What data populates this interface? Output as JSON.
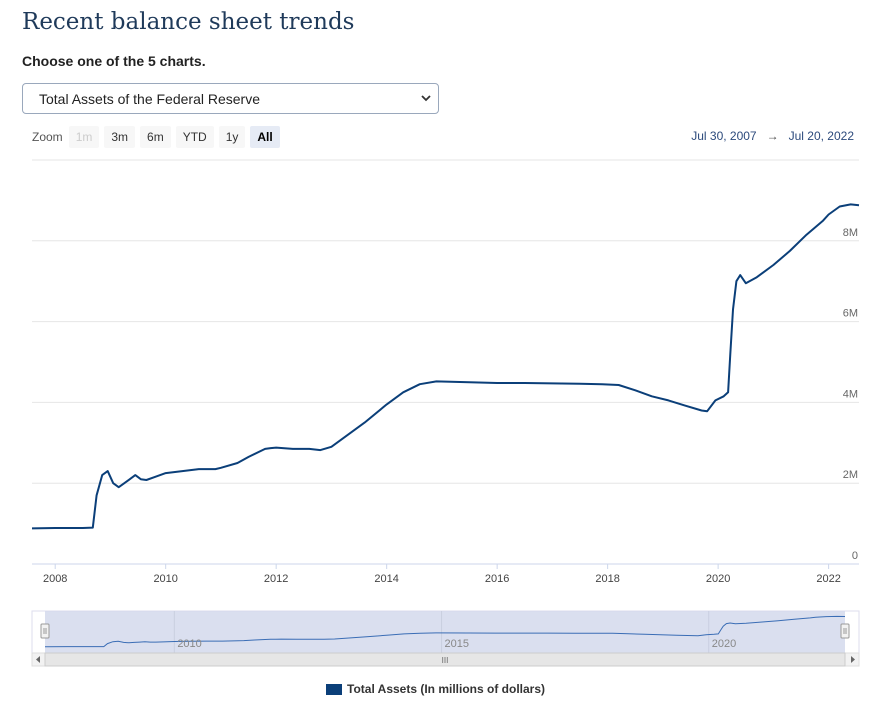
{
  "page": {
    "title": "Recent balance sheet trends",
    "subtitle": "Choose one of the 5 charts.",
    "select_value": "Total Assets of the Federal Reserve"
  },
  "zoom": {
    "label": "Zoom",
    "buttons": [
      {
        "label": "1m",
        "state": "disabled"
      },
      {
        "label": "3m",
        "state": "normal"
      },
      {
        "label": "6m",
        "state": "normal"
      },
      {
        "label": "YTD",
        "state": "normal"
      },
      {
        "label": "1y",
        "state": "normal"
      },
      {
        "label": "All",
        "state": "active"
      }
    ]
  },
  "range": {
    "from": "Jul 30, 2007",
    "arrow": "→",
    "to": "Jul 20, 2022"
  },
  "navigator": {
    "labels": [
      "2010",
      "2015",
      "2020"
    ],
    "scroll_grip": "III"
  },
  "colors": {
    "series": "#0b3f79",
    "grid": "#e6e6e6",
    "navigator_fill": "#d3d9ec"
  },
  "chart_data": {
    "type": "line",
    "title": "",
    "xlabel": "",
    "ylabel": "",
    "x_ticks": [
      "2008",
      "2010",
      "2012",
      "2014",
      "2016",
      "2018",
      "2020",
      "2022"
    ],
    "y_ticks": [
      "0",
      "2M",
      "4M",
      "6M",
      "8M"
    ],
    "xlim": [
      2007.58,
      2022.55
    ],
    "ylim": [
      0,
      10000000
    ],
    "legend": "Total Assets (In millions of dollars)",
    "series": [
      {
        "name": "Total Assets (In millions of dollars)",
        "x": [
          2007.58,
          2008.0,
          2008.5,
          2008.68,
          2008.75,
          2008.85,
          2008.95,
          2009.05,
          2009.15,
          2009.25,
          2009.35,
          2009.45,
          2009.55,
          2009.65,
          2009.8,
          2010.0,
          2010.3,
          2010.6,
          2010.9,
          2011.0,
          2011.3,
          2011.5,
          2011.8,
          2011.9,
          2012.0,
          2012.3,
          2012.6,
          2012.8,
          2013.0,
          2013.3,
          2013.6,
          2014.0,
          2014.3,
          2014.6,
          2014.9,
          2015.5,
          2016.0,
          2016.5,
          2017.0,
          2017.5,
          2017.9,
          2018.2,
          2018.5,
          2018.8,
          2019.1,
          2019.4,
          2019.7,
          2019.8,
          2019.95,
          2020.1,
          2020.18,
          2020.22,
          2020.27,
          2020.33,
          2020.4,
          2020.5,
          2020.7,
          2021.0,
          2021.3,
          2021.6,
          2021.9,
          2022.0,
          2022.2,
          2022.4,
          2022.55
        ],
        "values": [
          880000,
          890000,
          890000,
          900000,
          1700000,
          2200000,
          2300000,
          2000000,
          1900000,
          2000000,
          2100000,
          2200000,
          2100000,
          2080000,
          2150000,
          2250000,
          2300000,
          2350000,
          2350000,
          2380000,
          2500000,
          2650000,
          2850000,
          2870000,
          2880000,
          2850000,
          2850000,
          2820000,
          2900000,
          3200000,
          3500000,
          3950000,
          4250000,
          4450000,
          4520000,
          4500000,
          4480000,
          4480000,
          4470000,
          4460000,
          4450000,
          4430000,
          4300000,
          4150000,
          4050000,
          3920000,
          3800000,
          3780000,
          4050000,
          4150000,
          4250000,
          5200000,
          6300000,
          7000000,
          7150000,
          6950000,
          7100000,
          7400000,
          7750000,
          8150000,
          8500000,
          8650000,
          8850000,
          8900000,
          8880000
        ]
      }
    ]
  }
}
